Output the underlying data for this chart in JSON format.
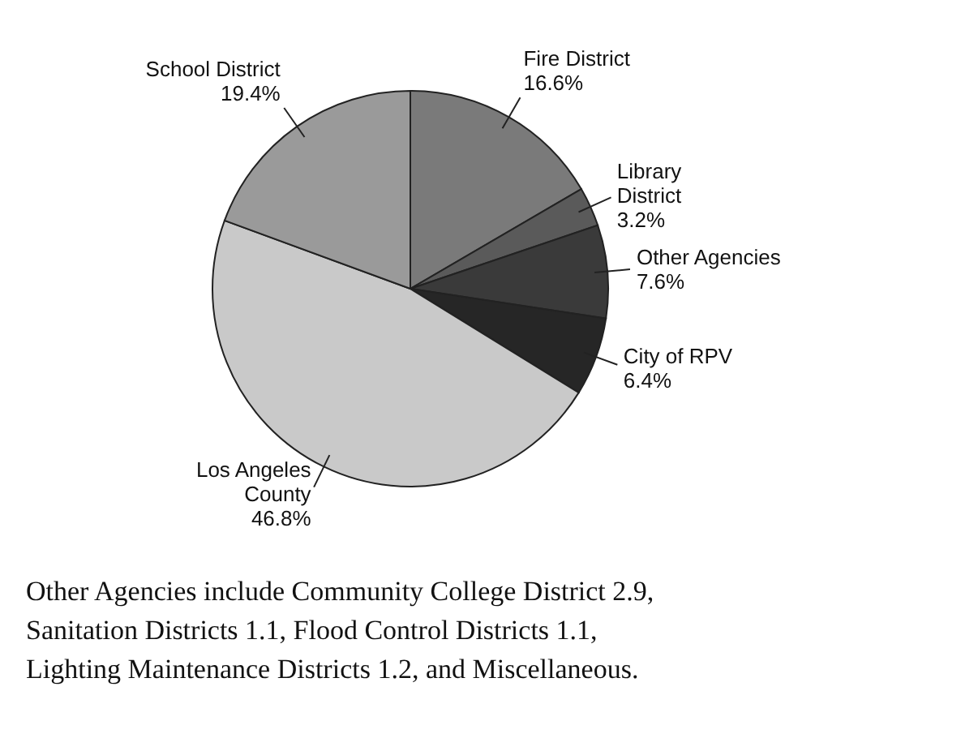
{
  "chart_data": {
    "type": "pie",
    "categories": [
      "Fire District",
      "Library District",
      "Other Agencies",
      "City of RPV",
      "Los Angeles County",
      "School District"
    ],
    "values": [
      16.6,
      3.2,
      7.6,
      6.4,
      46.8,
      19.4
    ],
    "value_labels": [
      "16.6%",
      "3.2%",
      "7.6%",
      "6.4%",
      "46.8%",
      "19.4%"
    ],
    "colors": [
      "#7a7a7a",
      "#5a5a5a",
      "#3a3a3a",
      "#262626",
      "#c9c9c9",
      "#9a9a9a"
    ],
    "annotations": [
      "Other Agencies include Community College District 2.9, Sanitation Districts 1.1, Flood Control Districts 1.1, Lighting Maintenance Districts 1.2, and Miscellaneous."
    ]
  }
}
